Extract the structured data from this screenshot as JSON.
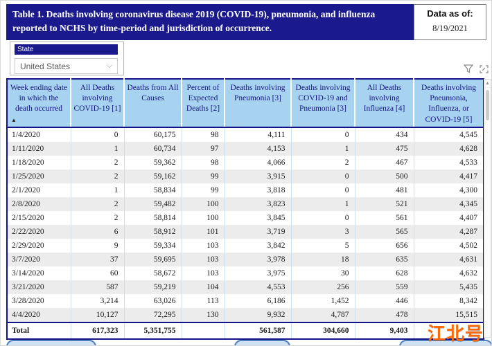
{
  "header": {
    "title": "Table 1. Deaths involving coronavirus disease 2019 (COVID-19), pneumonia, and influenza reported to NCHS by time-period and jurisdiction of occurrence.",
    "data_as_of_label": "Data as of:",
    "data_as_of_value": "8/19/2021"
  },
  "slicer": {
    "title": "State",
    "selected": "United States",
    "chevron_icon": "⌵"
  },
  "visual_toolbar": {
    "filter_icon": "funnel",
    "focus_icon": "focus-mode"
  },
  "table": {
    "sort_icon": "▲",
    "columns": [
      "Week ending date in which the death occurred",
      "All Deaths involving COVID-19 [1]",
      "Deaths from All Causes",
      "Percent of Expected Deaths [2]",
      "Deaths involving Pneumonia [3]",
      "Deaths involving COVID-19 and Pneumonia [3]",
      "All Deaths involving Influenza [4]",
      "Deaths involving Pneumonia, Influenza, or COVID-19 [5]"
    ],
    "rows": [
      [
        "1/4/2020",
        "0",
        "60,175",
        "98",
        "4,111",
        "0",
        "434",
        "4,545"
      ],
      [
        "1/11/2020",
        "1",
        "60,734",
        "97",
        "4,153",
        "1",
        "475",
        "4,628"
      ],
      [
        "1/18/2020",
        "2",
        "59,362",
        "98",
        "4,066",
        "2",
        "467",
        "4,533"
      ],
      [
        "1/25/2020",
        "2",
        "59,162",
        "99",
        "3,915",
        "0",
        "500",
        "4,417"
      ],
      [
        "2/1/2020",
        "1",
        "58,834",
        "99",
        "3,818",
        "0",
        "481",
        "4,300"
      ],
      [
        "2/8/2020",
        "2",
        "59,482",
        "100",
        "3,823",
        "1",
        "521",
        "4,345"
      ],
      [
        "2/15/2020",
        "2",
        "58,814",
        "100",
        "3,845",
        "0",
        "561",
        "4,407"
      ],
      [
        "2/22/2020",
        "6",
        "58,912",
        "101",
        "3,719",
        "3",
        "565",
        "4,287"
      ],
      [
        "2/29/2020",
        "9",
        "59,334",
        "103",
        "3,842",
        "5",
        "656",
        "4,502"
      ],
      [
        "3/7/2020",
        "37",
        "59,695",
        "103",
        "3,978",
        "18",
        "635",
        "4,631"
      ],
      [
        "3/14/2020",
        "60",
        "58,672",
        "103",
        "3,975",
        "30",
        "628",
        "4,632"
      ],
      [
        "3/21/2020",
        "587",
        "59,219",
        "104",
        "4,553",
        "256",
        "559",
        "5,435"
      ],
      [
        "3/28/2020",
        "3,214",
        "63,026",
        "113",
        "6,186",
        "1,452",
        "446",
        "8,342"
      ],
      [
        "4/4/2020",
        "10,127",
        "72,295",
        "130",
        "9,932",
        "4,787",
        "478",
        "15,515"
      ]
    ],
    "total_row": [
      "Total",
      "617,323",
      "5,351,755",
      "",
      "561,587",
      "304,660",
      "9,403",
      ""
    ]
  },
  "watermark": "江北号",
  "colors": {
    "navy": "#1a1a8c",
    "header_blue": "#a7d3f0",
    "row_alt": "#ececec",
    "table_border": "#12128a",
    "pill_border": "#4f81bd",
    "watermark_orange": "#ff6900"
  }
}
